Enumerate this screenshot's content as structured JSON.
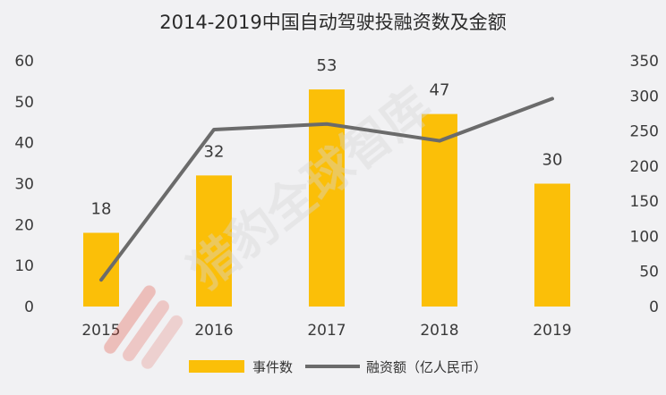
{
  "chart_data": {
    "type": "bar",
    "title": "2014-2019中国自动驾驶投融资数及金额",
    "categories": [
      "2015",
      "2016",
      "2017",
      "2018",
      "2019"
    ],
    "series": [
      {
        "name": "事件数",
        "kind": "bar",
        "axis": "left",
        "values": [
          18,
          32,
          53,
          47,
          30
        ],
        "color": "#fbbf08"
      },
      {
        "name": "融资额（亿人民币）",
        "kind": "line",
        "axis": "right",
        "values": [
          38,
          252,
          260,
          236,
          296
        ],
        "color": "#6b6b6b"
      }
    ],
    "left_axis": {
      "ylim": [
        0,
        60
      ],
      "ticks": [
        "0",
        "10",
        "20",
        "30",
        "40",
        "50",
        "60"
      ]
    },
    "right_axis": {
      "ylim": [
        0,
        350
      ],
      "ticks": [
        "0",
        "50",
        "100",
        "150",
        "200",
        "250",
        "300",
        "350"
      ]
    },
    "data_labels": [
      "18",
      "32",
      "53",
      "47",
      "30"
    ],
    "grid": false,
    "legend_position": "bottom"
  },
  "watermark": {
    "text": "猎豹全球智库",
    "logo_color": "#e24a3b"
  }
}
